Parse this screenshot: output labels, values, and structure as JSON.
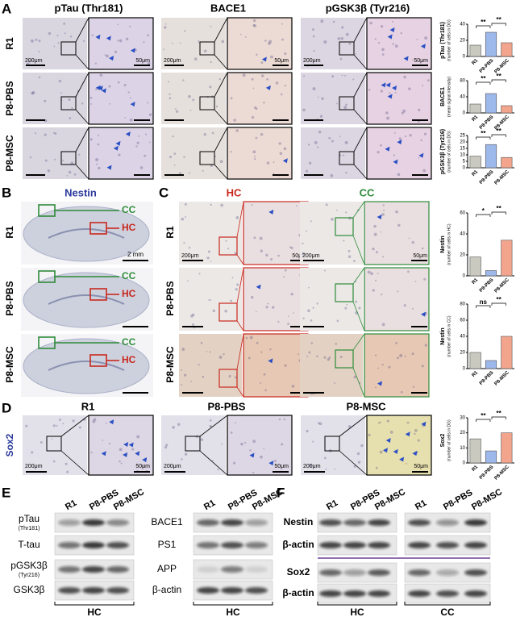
{
  "panels": {
    "A": {
      "letter": "A",
      "columns": [
        "pTau (Thr181)",
        "BACE1",
        "pGSK3β (Tyr216)"
      ],
      "rows": [
        "R1",
        "P8-PBS",
        "P8-MSC"
      ]
    },
    "B": {
      "letter": "B",
      "title": "Nestin",
      "cc": "CC",
      "hc": "HC",
      "rows": [
        "R1",
        "P8-PBS",
        "P8-MSC"
      ]
    },
    "C": {
      "letter": "C",
      "columns": [
        "HC",
        "CC"
      ],
      "rows": [
        "R1",
        "P8-PBS",
        "P8-MSC"
      ]
    },
    "D": {
      "letter": "D",
      "label": "Sox2",
      "columns": [
        "R1",
        "P8-PBS",
        "P8-MSC"
      ]
    },
    "E": {
      "letter": "E",
      "lanes": [
        "R1",
        "P8-PBS",
        "P8-MSC"
      ],
      "left_blots": [
        {
          "label": "pTau",
          "sub": "(Thr181)"
        },
        {
          "label": "T-tau"
        },
        {
          "label": "pGSK3β",
          "sub": "(Tyr216)"
        },
        {
          "label": "GSK3β"
        }
      ],
      "right_blots": [
        {
          "label": "BACE1"
        },
        {
          "label": "PS1"
        },
        {
          "label": "APP"
        },
        {
          "label": "β-actin"
        }
      ],
      "region": "HC"
    },
    "F": {
      "letter": "F",
      "lanes": [
        "R1",
        "P8-PBS",
        "P8-MSC"
      ],
      "blots": [
        {
          "label": "Nestin"
        },
        {
          "label": "β-actin"
        },
        {
          "label": "Sox2"
        },
        {
          "label": "β-actin"
        }
      ],
      "regions": [
        "HC",
        "CC"
      ]
    }
  },
  "scale_labels": {
    "low": "200μm",
    "high": "50μm",
    "brain": "2 mm"
  },
  "charts": [
    {
      "type": "bar",
      "ylabel": "pTau (Thr181)",
      "sublabel": "(number of cells in DG)",
      "categories": [
        "R1",
        "P8-PBS",
        "P8-MSC"
      ],
      "values": [
        14,
        30,
        17
      ],
      "colors": [
        "#c9c9c0",
        "#9db8ea",
        "#f2a58c"
      ],
      "ylim": [
        0,
        40
      ],
      "yticks": [
        0,
        20,
        40
      ],
      "significance": [
        "**",
        "**"
      ]
    },
    {
      "type": "bar",
      "ylabel": "BACE1",
      "sublabel": "(mean signal intensity)",
      "categories": [
        "R1",
        "P8-PBS",
        "P8-MSC"
      ],
      "values": [
        22,
        48,
        18
      ],
      "colors": [
        "#c9c9c0",
        "#9db8ea",
        "#f2a58c"
      ],
      "ylim": [
        0,
        80
      ],
      "yticks": [
        0,
        40,
        80
      ],
      "significance": [
        "**",
        "**"
      ]
    },
    {
      "type": "bar",
      "ylabel": "pGSK3β (Tyr216)",
      "sublabel": "(number of cells in DG)",
      "categories": [
        "R1",
        "P8-PBS",
        "P8-MSC"
      ],
      "values": [
        9,
        18,
        8
      ],
      "colors": [
        "#c9c9c0",
        "#9db8ea",
        "#f2a58c"
      ],
      "ylim": [
        0,
        25
      ],
      "yticks": [
        0,
        5,
        10,
        15,
        20,
        25
      ],
      "significance": [
        "**",
        "**"
      ]
    },
    {
      "type": "bar",
      "ylabel": "Nestin",
      "sublabel": "(number of cells in HC)",
      "categories": [
        "R1",
        "P8-PBS",
        "P8-MSC"
      ],
      "values": [
        18,
        5,
        34
      ],
      "colors": [
        "#c9c9c0",
        "#9db8ea",
        "#f2a58c"
      ],
      "ylim": [
        0,
        60
      ],
      "yticks": [
        0,
        20,
        40,
        60
      ],
      "significance": [
        "*",
        "**"
      ]
    },
    {
      "type": "bar",
      "ylabel": "Nestin",
      "sublabel": "(number of cells in CC)",
      "categories": [
        "R1",
        "P8-PBS",
        "P8-MSC"
      ],
      "values": [
        20,
        10,
        40
      ],
      "colors": [
        "#c9c9c0",
        "#9db8ea",
        "#f2a58c"
      ],
      "ylim": [
        0,
        80
      ],
      "yticks": [
        0,
        20,
        40,
        60,
        80
      ],
      "significance": [
        "ns",
        "**"
      ]
    },
    {
      "type": "bar",
      "ylabel": "Sox2",
      "sublabel": "(number of cells in DG)",
      "categories": [
        "R1",
        "P8-PBS",
        "P8-MSC"
      ],
      "values": [
        16,
        8,
        20
      ],
      "colors": [
        "#c9c9c0",
        "#9db8ea",
        "#f2a58c"
      ],
      "ylim": [
        0,
        30
      ],
      "yticks": [
        0,
        10,
        20,
        30
      ],
      "significance": [
        "**",
        "**"
      ]
    }
  ]
}
